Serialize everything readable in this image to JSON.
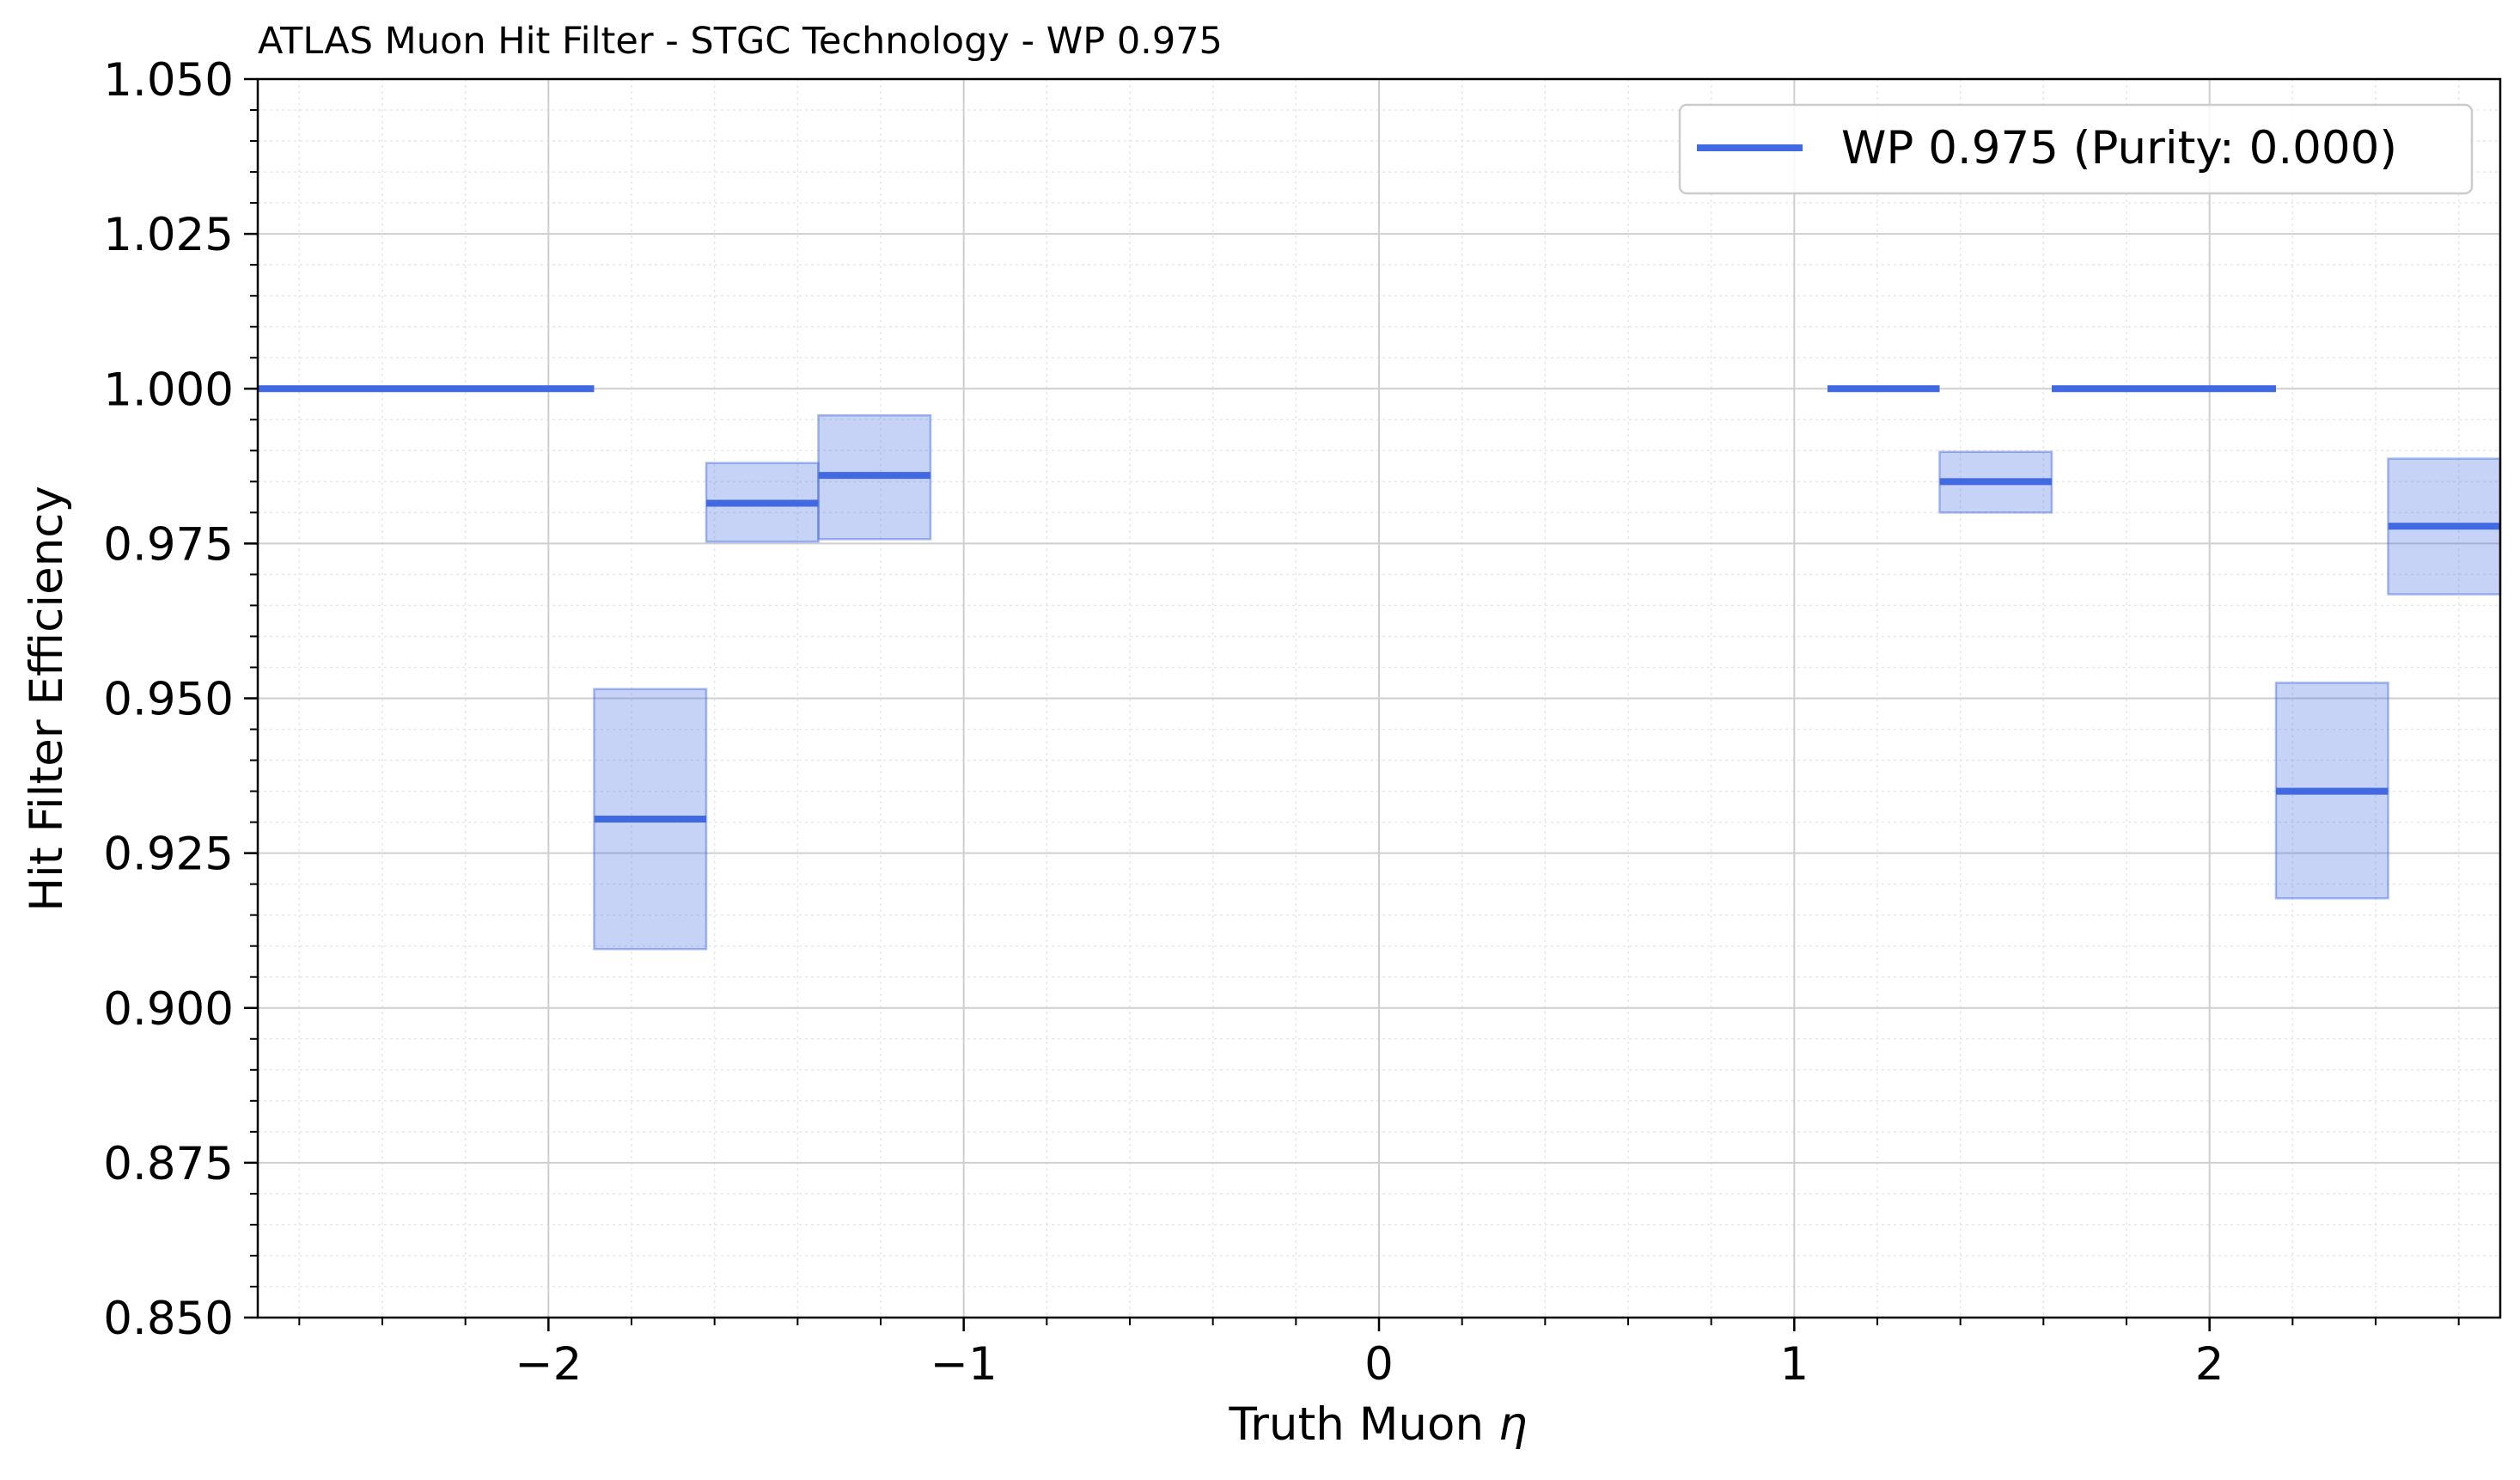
{
  "chart_data": {
    "type": "step",
    "title": "ATLAS Muon Hit Filter - STGC Technology - WP 0.975",
    "xlabel": "Truth Muon η",
    "xlabel_parts": {
      "text": "Truth Muon ",
      "symbol": "η"
    },
    "ylabel": "Hit Filter Efficiency",
    "xlim": [
      -2.7,
      2.7
    ],
    "ylim": [
      0.85,
      1.05
    ],
    "x_ticks": [
      -2,
      -1,
      0,
      1,
      2
    ],
    "x_tick_labels": [
      "−2",
      "−1",
      "0",
      "1",
      "2"
    ],
    "y_ticks": [
      0.85,
      0.875,
      0.9,
      0.925,
      0.95,
      0.975,
      1.0,
      1.025,
      1.05
    ],
    "y_tick_labels": [
      "0.850",
      "0.875",
      "0.900",
      "0.925",
      "0.950",
      "0.975",
      "1.000",
      "1.025",
      "1.050"
    ],
    "grid": true,
    "legend_position": "top-right",
    "color": "#4169e1",
    "series": [
      {
        "name": "WP 0.975 (Purity: 0.000)",
        "bins": [
          {
            "x0": -2.7,
            "x1": -2.43,
            "y": 1.0,
            "lo": 1.0,
            "hi": 1.0
          },
          {
            "x0": -2.43,
            "x1": -2.16,
            "y": 1.0,
            "lo": 1.0,
            "hi": 1.0
          },
          {
            "x0": -2.16,
            "x1": -1.89,
            "y": 1.0,
            "lo": 1.0,
            "hi": 1.0
          },
          {
            "x0": -1.89,
            "x1": -1.62,
            "y": 0.9305,
            "lo": 0.9095,
            "hi": 0.9515
          },
          {
            "x0": -1.62,
            "x1": -1.35,
            "y": 0.9815,
            "lo": 0.9753,
            "hi": 0.988
          },
          {
            "x0": -1.35,
            "x1": -1.08,
            "y": 0.986,
            "lo": 0.9757,
            "hi": 0.9957
          },
          {
            "x0": 1.08,
            "x1": 1.35,
            "y": 1.0,
            "lo": 1.0,
            "hi": 1.0
          },
          {
            "x0": 1.35,
            "x1": 1.62,
            "y": 0.985,
            "lo": 0.98,
            "hi": 0.9898
          },
          {
            "x0": 1.62,
            "x1": 1.89,
            "y": 1.0,
            "lo": 1.0,
            "hi": 1.0
          },
          {
            "x0": 1.89,
            "x1": 2.16,
            "y": 1.0,
            "lo": 1.0,
            "hi": 1.0
          },
          {
            "x0": 2.16,
            "x1": 2.43,
            "y": 0.935,
            "lo": 0.9177,
            "hi": 0.9525
          },
          {
            "x0": 2.43,
            "x1": 2.7,
            "y": 0.9778,
            "lo": 0.9668,
            "hi": 0.9887
          }
        ]
      }
    ]
  }
}
